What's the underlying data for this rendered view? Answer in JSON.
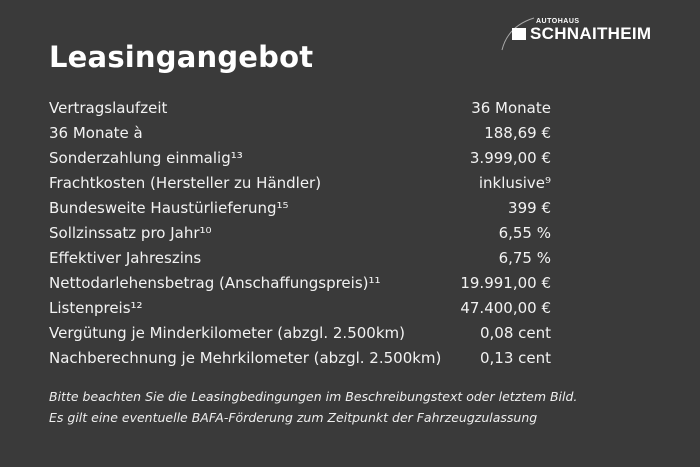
{
  "logo": {
    "small": "AUTOHAUS",
    "big": "SCHNAITHEIM"
  },
  "title": "Leasingangebot",
  "rows": [
    {
      "label": "Vertragslaufzeit",
      "value": "36 Monate"
    },
    {
      "label": "36 Monate à",
      "value": "188,69 €"
    },
    {
      "label": "Sonderzahlung einmalig¹³",
      "value": "3.999,00 €"
    },
    {
      "label": "Frachtkosten (Hersteller zu Händler)",
      "value": "inklusive⁹"
    },
    {
      "label": "Bundesweite Haustürlieferung¹⁵",
      "value": "399 €"
    },
    {
      "label": "Sollzinssatz pro Jahr¹⁰",
      "value": "6,55 %"
    },
    {
      "label": "Effektiver Jahreszins",
      "value": "6,75 %"
    },
    {
      "label": "Nettodarlehensbetrag (Anschaffungspreis)¹¹",
      "value": "19.991,00 €"
    },
    {
      "label": "Listenpreis¹²",
      "value": "47.400,00 €"
    },
    {
      "label": "Vergütung je Minderkilometer (abzgl. 2.500km)",
      "value": "0,08 cent"
    },
    {
      "label": "Nachberechnung je Mehrkilometer (abzgl. 2.500km)",
      "value": "0,13 cent"
    }
  ],
  "notes": [
    "Bitte beachten Sie die Leasingbedingungen im Beschreibungstext oder letztem Bild.",
    "Es gilt eine eventuelle BAFA-Förderung zum Zeitpunkt der Fahrzeugzulassung"
  ]
}
